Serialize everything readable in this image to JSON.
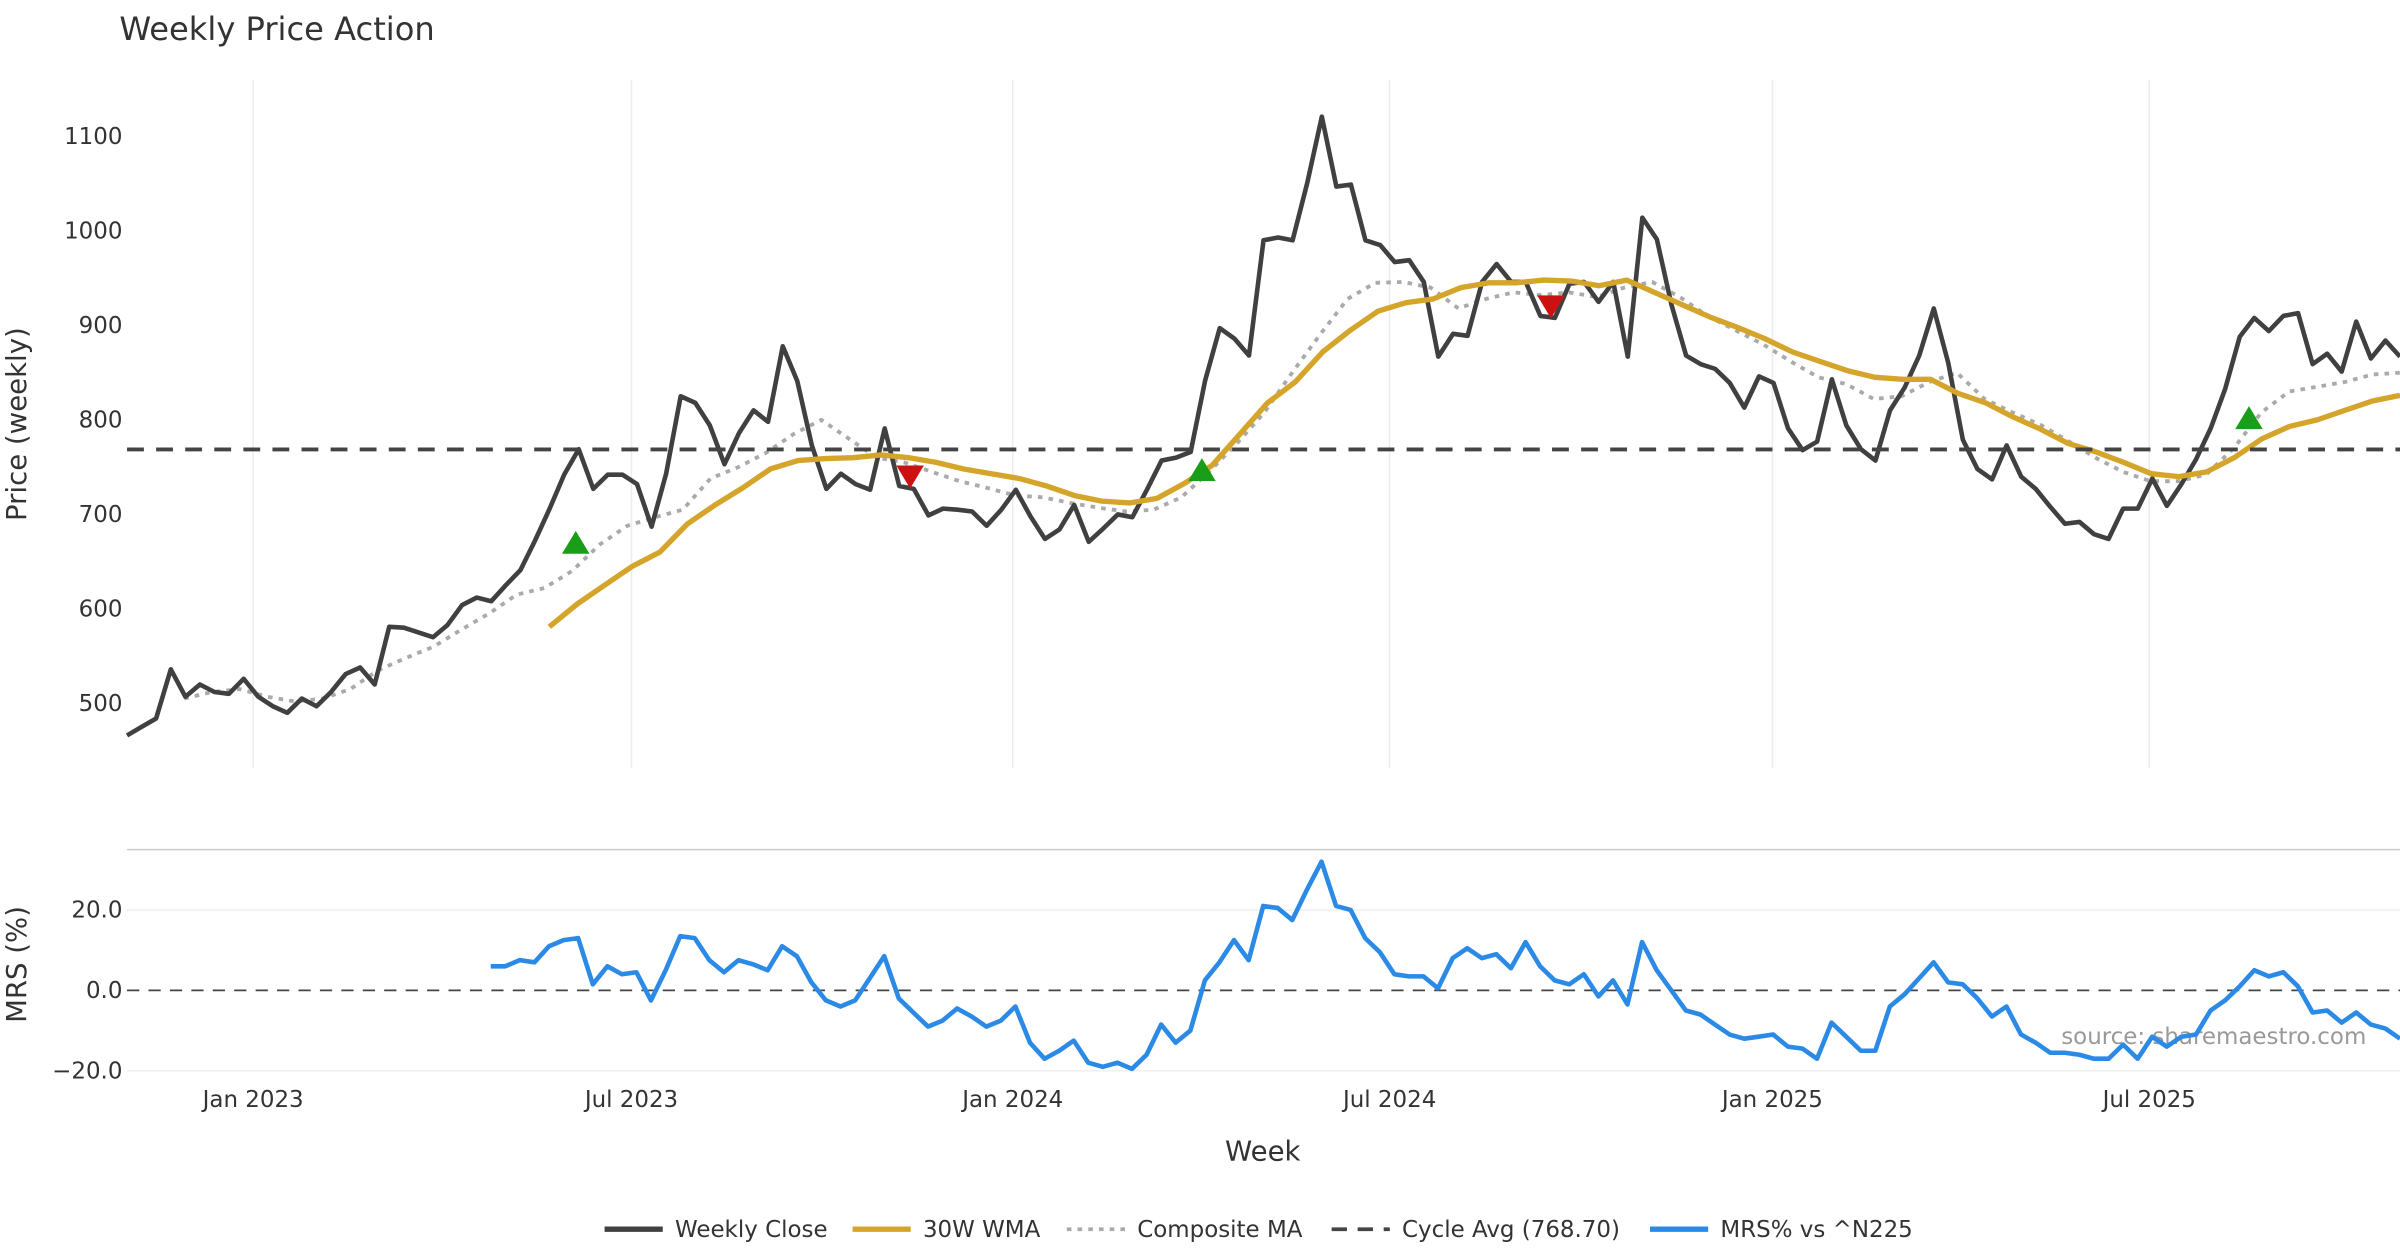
{
  "chart_data": {
    "type": "line",
    "title": "Weekly Price Action",
    "xlabel": "Week",
    "x_unit": "weeks since first plotted week",
    "xlim": [
      0,
      155
    ],
    "x_ticks": [
      {
        "week": 8.6,
        "label": "Jan 2023"
      },
      {
        "week": 34.4,
        "label": "Jul 2023"
      },
      {
        "week": 60.4,
        "label": "Jan 2024"
      },
      {
        "week": 86.1,
        "label": "Jul 2024"
      },
      {
        "week": 112.2,
        "label": "Jan 2025"
      },
      {
        "week": 137.9,
        "label": "Jul 2025"
      }
    ],
    "price_panel": {
      "ylabel": "Price (weekly)",
      "ylim": [
        431,
        1160
      ],
      "y_ticks": [
        500,
        600,
        700,
        800,
        900,
        1000,
        1100
      ],
      "cycle_avg": 768.7,
      "series": [
        {
          "name": "Weekly Close",
          "color": "#404040",
          "start_week": 0,
          "end_week": 155,
          "values": [
            466,
            475,
            484,
            536,
            507,
            520,
            512,
            510,
            526,
            507,
            497,
            490,
            505,
            497,
            512,
            531,
            538,
            520,
            581,
            580,
            575,
            570,
            583,
            604,
            612,
            608,
            625,
            641,
            672,
            706,
            742,
            769,
            727,
            742,
            742,
            732,
            687,
            743,
            825,
            818,
            794,
            753,
            786,
            810,
            798,
            878,
            841,
            773,
            727,
            743,
            732,
            726,
            791,
            730,
            727,
            699,
            706,
            705,
            703,
            688,
            705,
            726,
            698,
            674,
            684,
            710,
            671,
            685,
            700,
            697,
            726,
            757,
            760,
            766,
            842,
            897,
            886,
            868,
            990,
            993,
            990,
            1051,
            1121,
            1047,
            1049,
            990,
            985,
            967,
            969,
            946,
            867,
            891,
            889,
            946,
            965,
            946,
            946,
            910,
            908,
            944,
            946,
            925,
            946,
            867,
            1014,
            991,
            922,
            868,
            859,
            854,
            839,
            813,
            846,
            839,
            791,
            768,
            777,
            843,
            794,
            769,
            757,
            810,
            834,
            868,
            918,
            860,
            779,
            748,
            737,
            773,
            740,
            727,
            708,
            690,
            692,
            679,
            674,
            706,
            706,
            738,
            709,
            732,
            758,
            791,
            833,
            888,
            908,
            894,
            910,
            913,
            859,
            870,
            851,
            904,
            865,
            884,
            867
          ]
        },
        {
          "name": "30W WMA",
          "color": "#d4a52a",
          "start_week": 28.8,
          "end_week": 155,
          "values": [
            581,
            605,
            625,
            645,
            660,
            690,
            710,
            728,
            748,
            757,
            759,
            760,
            763,
            760,
            755,
            748,
            743,
            738,
            730,
            720,
            714,
            712,
            717,
            733,
            752,
            785,
            818,
            840,
            872,
            895,
            915,
            924,
            928,
            940,
            945,
            945,
            948,
            947,
            942,
            948,
            935,
            922,
            909,
            898,
            886,
            872,
            862,
            852,
            845,
            843,
            843,
            828,
            818,
            803,
            790,
            775,
            766,
            755,
            743,
            740,
            745,
            760,
            780,
            793,
            800,
            810,
            820,
            826
          ]
        },
        {
          "name": "Composite MA",
          "color": "#aaaaaa",
          "start_week": 3.9,
          "end_week": 155,
          "values": [
            505,
            512,
            515,
            507,
            502,
            505,
            515,
            535,
            548,
            560,
            578,
            595,
            615,
            622,
            640,
            668,
            688,
            697,
            705,
            738,
            750,
            765,
            785,
            800,
            780,
            760,
            755,
            745,
            735,
            728,
            720,
            718,
            712,
            707,
            703,
            705,
            718,
            745,
            775,
            808,
            850,
            890,
            928,
            945,
            946,
            940,
            918,
            928,
            935,
            932,
            935,
            930,
            940,
            946,
            930,
            910,
            895,
            880,
            862,
            845,
            838,
            822,
            825,
            840,
            850,
            822,
            808,
            795,
            778,
            760,
            745,
            735,
            735,
            742,
            770,
            808,
            830,
            835,
            840,
            848,
            850
          ]
        },
        {
          "name": "Cycle Avg (768.70)",
          "color": "#444444",
          "constant": 768.7
        }
      ],
      "buy_signals": [
        [
          30.6,
          668
        ],
        [
          73.3,
          745
        ],
        [
          144.7,
          800
        ]
      ],
      "sell_signals": [
        [
          53.4,
          742
        ],
        [
          97.1,
          922
        ]
      ],
      "buy_color": "#1a9e1a",
      "sell_color": "#cc1111"
    },
    "mrs_panel": {
      "ylabel": "MRS (%)",
      "ylim": [
        -24,
        35
      ],
      "y_ticks": [
        {
          "value": 20,
          "label": "20.0"
        },
        {
          "value": 0,
          "label": "0.0"
        },
        {
          "value": -20,
          "label": "−20.0"
        }
      ],
      "series": [
        {
          "name": "MRS% vs ^N225",
          "color": "#2b8ae6",
          "start_week": 24.8,
          "end_week": 155,
          "values": [
            6,
            6,
            7.5,
            7,
            11,
            12.5,
            13,
            1.5,
            6,
            4,
            4.5,
            -2.5,
            5,
            13.5,
            13,
            7.5,
            4.5,
            7.5,
            6.5,
            5,
            11,
            8.5,
            2,
            -2.5,
            -4,
            -2.5,
            3,
            8.5,
            -2,
            -5.5,
            -9,
            -7.5,
            -4.5,
            -6.5,
            -9,
            -7.5,
            -4,
            -13,
            -17,
            -15,
            -12.5,
            -18,
            -19,
            -18,
            -19.5,
            -16,
            -8.5,
            -13,
            -10,
            2.5,
            7,
            12.5,
            7.5,
            21,
            20.5,
            17.5,
            25,
            32,
            21,
            20,
            13,
            9.5,
            4,
            3.5,
            3.5,
            0.5,
            8,
            10.5,
            8,
            9,
            5.5,
            12,
            6,
            2.5,
            1.5,
            4,
            -1.5,
            2.5,
            -3.5,
            12,
            5,
            0,
            -5,
            -6,
            -8.5,
            -11,
            -12,
            -11.5,
            -11,
            -14,
            -14.5,
            -17,
            -8,
            -11.5,
            -15,
            -15,
            -4,
            -1,
            3,
            7,
            2,
            1.5,
            -2,
            -6.5,
            -4,
            -11,
            -13,
            -15.5,
            -15.5,
            -16,
            -17,
            -17,
            -13.5,
            -17,
            -11.5,
            -14,
            -11.5,
            -11,
            -5,
            -2.5,
            1,
            5,
            3.5,
            4.5,
            1,
            -5.5,
            -5,
            -8,
            -5.5,
            -8.5,
            -9.5,
            -12
          ]
        }
      ]
    },
    "source_note": "source: sharemaestro.com",
    "legend": {
      "placement": "bottom-center",
      "entries": [
        {
          "label": "Weekly Close",
          "style": "solid",
          "color": "#404040"
        },
        {
          "label": "30W WMA",
          "style": "solid",
          "color": "#d4a52a"
        },
        {
          "label": "Composite MA",
          "style": "dotted",
          "color": "#aaaaaa"
        },
        {
          "label": "Cycle Avg (768.70)",
          "style": "dashed",
          "color": "#444444"
        },
        {
          "label": "MRS% vs ^N225",
          "style": "solid",
          "color": "#2b8ae6"
        }
      ]
    }
  }
}
